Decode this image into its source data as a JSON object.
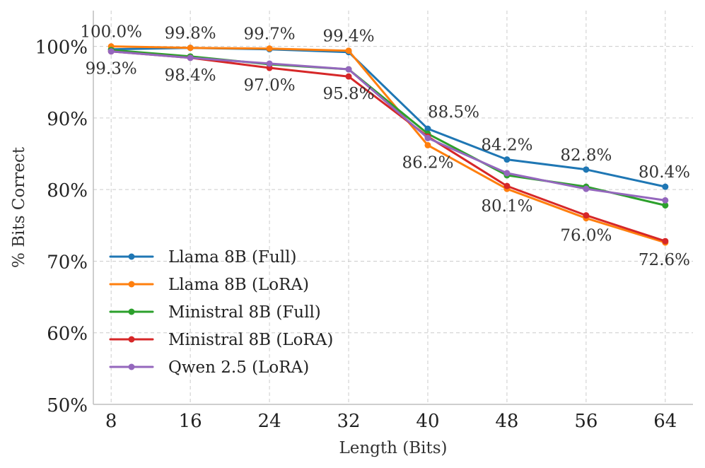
{
  "chart_data": {
    "type": "line",
    "title": "",
    "xlabel": "Length (Bits)",
    "ylabel": "% Bits Correct",
    "ylim": [
      50,
      105
    ],
    "yticks": [
      50,
      60,
      70,
      80,
      90,
      100
    ],
    "ytick_labels": [
      "50%",
      "60%",
      "70%",
      "80%",
      "90%",
      "100%"
    ],
    "x": [
      8,
      16,
      24,
      32,
      40,
      48,
      56,
      64
    ],
    "x_labels": [
      "8",
      "16",
      "24",
      "32",
      "40",
      "48",
      "56",
      "64"
    ],
    "grid": true,
    "legend_position": "lower-left",
    "series": [
      {
        "name": "Llama 8B (Full)",
        "color": "#1f77b4",
        "values": [
          99.6,
          99.8,
          99.6,
          99.2,
          88.5,
          84.2,
          82.8,
          80.4
        ]
      },
      {
        "name": "Llama 8B (LoRA)",
        "color": "#ff7f0e",
        "values": [
          100.0,
          99.8,
          99.7,
          99.4,
          86.2,
          80.1,
          76.0,
          72.6
        ]
      },
      {
        "name": "Ministral 8B (Full)",
        "color": "#2ca02c",
        "values": [
          99.5,
          98.6,
          97.5,
          96.8,
          87.8,
          82.0,
          80.4,
          77.8
        ]
      },
      {
        "name": "Ministral 8B (LoRA)",
        "color": "#d62728",
        "values": [
          99.3,
          98.4,
          97.0,
          95.8,
          87.4,
          80.5,
          76.4,
          72.8
        ]
      },
      {
        "name": "Qwen 2.5 (LoRA)",
        "color": "#9467bd",
        "values": [
          99.3,
          98.4,
          97.6,
          96.8,
          87.2,
          82.3,
          80.1,
          78.5
        ]
      }
    ],
    "annotations": [
      {
        "text": "100.0%",
        "x": 8,
        "y": 100.0,
        "placement": "above"
      },
      {
        "text": "99.8%",
        "x": 16,
        "y": 99.8,
        "placement": "above"
      },
      {
        "text": "99.7%",
        "x": 24,
        "y": 99.7,
        "placement": "above"
      },
      {
        "text": "99.4%",
        "x": 32,
        "y": 99.4,
        "placement": "above"
      },
      {
        "text": "88.5%",
        "x": 40,
        "y": 88.5,
        "placement": "above-right"
      },
      {
        "text": "84.2%",
        "x": 48,
        "y": 84.2,
        "placement": "above"
      },
      {
        "text": "82.8%",
        "x": 56,
        "y": 82.8,
        "placement": "above"
      },
      {
        "text": "80.4%",
        "x": 64,
        "y": 80.4,
        "placement": "above"
      },
      {
        "text": "99.3%",
        "x": 8,
        "y": 99.3,
        "placement": "below"
      },
      {
        "text": "98.4%",
        "x": 16,
        "y": 98.4,
        "placement": "below"
      },
      {
        "text": "97.0%",
        "x": 24,
        "y": 97.0,
        "placement": "below"
      },
      {
        "text": "95.8%",
        "x": 32,
        "y": 95.8,
        "placement": "below"
      },
      {
        "text": "86.2%",
        "x": 40,
        "y": 86.2,
        "placement": "below"
      },
      {
        "text": "80.1%",
        "x": 48,
        "y": 80.1,
        "placement": "below"
      },
      {
        "text": "76.0%",
        "x": 56,
        "y": 76.0,
        "placement": "below"
      },
      {
        "text": "72.6%",
        "x": 64,
        "y": 72.6,
        "placement": "below"
      }
    ]
  }
}
